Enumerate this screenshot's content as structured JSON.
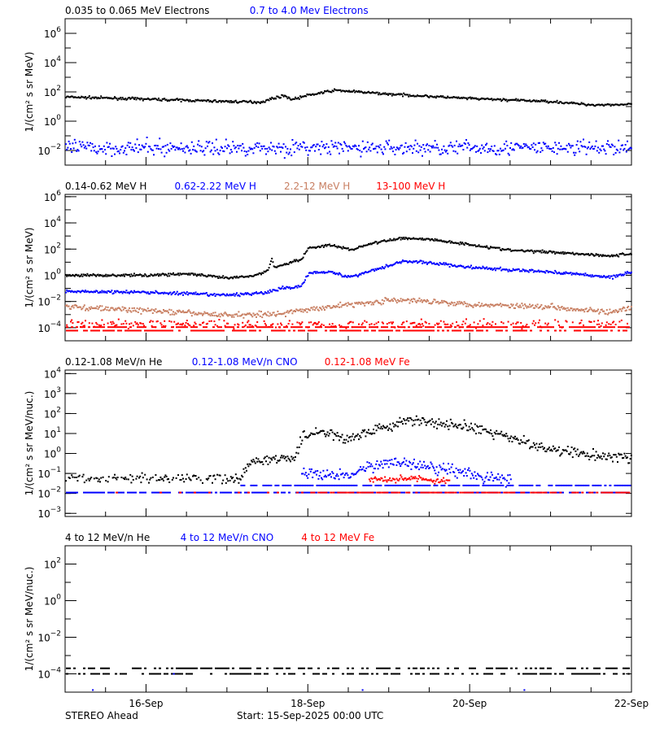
{
  "footer": {
    "left": "STEREO Ahead",
    "center": "Start: 15-Sep-2025 00:00 UTC"
  },
  "colors": {
    "black": "#000000",
    "blue": "#0000ff",
    "brown": "#c87f62",
    "red": "#ff0000"
  },
  "chart_data": [
    {
      "type": "scatter",
      "ylabel": "1/(cm² s sr MeV)",
      "yscale": "log",
      "ylim": [
        0.001,
        10000000.0
      ],
      "ytick_labels": [
        "10^6",
        "10^4",
        "10^2",
        "10^0",
        "10^-2"
      ],
      "xlim": [
        "2025-09-15T00:00",
        "2025-09-22T00:00"
      ],
      "series": [
        {
          "name": "0.035 to 0.065 MeV Electrons",
          "color": "#000000",
          "jitter": 0.04,
          "points": [
            [
              "2025-09-15T00:00",
              45
            ],
            [
              "2025-09-16T00:00",
              32
            ],
            [
              "2025-09-17T00:00",
              22
            ],
            [
              "2025-09-17T10:00",
              20
            ],
            [
              "2025-09-17T14:00",
              40
            ],
            [
              "2025-09-17T17:00",
              55
            ],
            [
              "2025-09-17T19:00",
              30
            ],
            [
              "2025-09-18T00:00",
              60
            ],
            [
              "2025-09-18T08:00",
              130
            ],
            [
              "2025-09-18T12:00",
              110
            ],
            [
              "2025-09-19T00:00",
              70
            ],
            [
              "2025-09-20T00:00",
              35
            ],
            [
              "2025-09-21T00:00",
              22
            ],
            [
              "2025-09-21T12:00",
              13
            ],
            [
              "2025-09-22T00:00",
              14
            ]
          ]
        },
        {
          "name": "0.7 to 4.0 Mev Electrons",
          "color": "#0000ff",
          "jitter": 0.25,
          "points": [
            [
              "2025-09-15T00:00",
              0.015
            ],
            [
              "2025-09-22T00:00",
              0.015
            ]
          ]
        }
      ]
    },
    {
      "type": "scatter",
      "ylabel": "1/(cm² s sr MeV)",
      "yscale": "log",
      "ylim": [
        1e-05,
        1500000.0
      ],
      "ytick_labels": [
        "10^6",
        "10^4",
        "10^2",
        "10^0",
        "10^-2",
        "10^-4"
      ],
      "xlim": [
        "2025-09-15T00:00",
        "2025-09-22T00:00"
      ],
      "series": [
        {
          "name": "0.14-0.62 MeV H",
          "color": "#000000",
          "jitter": 0.05,
          "points": [
            [
              "2025-09-15T00:00",
              1.0
            ],
            [
              "2025-09-16T00:00",
              1.0
            ],
            [
              "2025-09-16T12:00",
              1.3
            ],
            [
              "2025-09-17T00:00",
              0.6
            ],
            [
              "2025-09-17T08:00",
              0.9
            ],
            [
              "2025-09-17T12:00",
              2.5
            ],
            [
              "2025-09-17T13:00",
              18
            ],
            [
              "2025-09-17T14:00",
              4
            ],
            [
              "2025-09-17T22:00",
              18
            ],
            [
              "2025-09-18T00:00",
              120
            ],
            [
              "2025-09-18T06:00",
              200
            ],
            [
              "2025-09-18T13:00",
              90
            ],
            [
              "2025-09-18T18:00",
              250
            ],
            [
              "2025-09-19T04:00",
              700
            ],
            [
              "2025-09-19T12:00",
              550
            ],
            [
              "2025-09-20T00:00",
              220
            ],
            [
              "2025-09-20T12:00",
              80
            ],
            [
              "2025-09-21T00:00",
              60
            ],
            [
              "2025-09-21T18:00",
              30
            ],
            [
              "2025-09-22T00:00",
              45
            ]
          ]
        },
        {
          "name": "0.62-2.22 MeV H",
          "color": "#0000ff",
          "jitter": 0.06,
          "points": [
            [
              "2025-09-15T00:00",
              0.06
            ],
            [
              "2025-09-16T00:00",
              0.05
            ],
            [
              "2025-09-17T00:00",
              0.03
            ],
            [
              "2025-09-17T12:00",
              0.05
            ],
            [
              "2025-09-17T16:00",
              0.1
            ],
            [
              "2025-09-17T22:00",
              0.15
            ],
            [
              "2025-09-18T00:00",
              1.5
            ],
            [
              "2025-09-18T06:00",
              2.0
            ],
            [
              "2025-09-18T12:00",
              0.7
            ],
            [
              "2025-09-18T18:00",
              2.0
            ],
            [
              "2025-09-19T04:00",
              12
            ],
            [
              "2025-09-19T12:00",
              9
            ],
            [
              "2025-09-20T00:00",
              4
            ],
            [
              "2025-09-20T12:00",
              2.5
            ],
            [
              "2025-09-21T00:00",
              1.8
            ],
            [
              "2025-09-21T18:00",
              0.7
            ],
            [
              "2025-09-22T00:00",
              2.0
            ]
          ]
        },
        {
          "name": "2.2-12 MeV H",
          "color": "#c87f62",
          "jitter": 0.1,
          "points": [
            [
              "2025-09-15T00:00",
              0.004
            ],
            [
              "2025-09-16T00:00",
              0.002
            ],
            [
              "2025-09-17T00:00",
              0.0009
            ],
            [
              "2025-09-17T16:00",
              0.0012
            ],
            [
              "2025-09-18T06:00",
              0.004
            ],
            [
              "2025-09-19T00:00",
              0.012
            ],
            [
              "2025-09-19T12:00",
              0.011
            ],
            [
              "2025-09-20T00:00",
              0.006
            ],
            [
              "2025-09-21T00:00",
              0.004
            ],
            [
              "2025-09-21T18:00",
              0.0015
            ],
            [
              "2025-09-22T00:00",
              0.003
            ]
          ]
        },
        {
          "name": "13-100 MeV H",
          "color": "#ff0000",
          "jitter": 0.15,
          "sparse": true,
          "points": [
            [
              "2025-09-15T00:00",
              0.0002
            ],
            [
              "2025-09-22T00:00",
              0.0002
            ]
          ],
          "rows": [
            0.00011,
            6e-05
          ]
        }
      ]
    },
    {
      "type": "scatter",
      "ylabel": "1/(cm² s sr MeV/nuc.)",
      "yscale": "log",
      "ylim": [
        0.0007,
        15000.0
      ],
      "ytick_labels": [
        "10^4",
        "10^3",
        "10^2",
        "10^1",
        "10^0",
        "10^-1",
        "10^-2",
        "10^-3"
      ],
      "xlim": [
        "2025-09-15T00:00",
        "2025-09-22T00:00"
      ],
      "series": [
        {
          "name": "0.12-1.08 MeV/n He",
          "color": "#000000",
          "jitter": 0.12,
          "points": [
            [
              "2025-09-15T00:00",
              0.055
            ],
            [
              "2025-09-17T04:00",
              0.055
            ],
            [
              "2025-09-17T06:00",
              0.3
            ],
            [
              "2025-09-17T12:00",
              0.5
            ],
            [
              "2025-09-17T20:00",
              0.5
            ],
            [
              "2025-09-17T22:00",
              8
            ],
            [
              "2025-09-18T06:00",
              12
            ],
            [
              "2025-09-18T12:00",
              5
            ],
            [
              "2025-09-18T20:00",
              15
            ],
            [
              "2025-09-19T06:00",
              50
            ],
            [
              "2025-09-19T12:00",
              35
            ],
            [
              "2025-09-20T00:00",
              20
            ],
            [
              "2025-09-20T12:00",
              6
            ],
            [
              "2025-09-21T00:00",
              1.5
            ],
            [
              "2025-09-21T12:00",
              0.8
            ],
            [
              "2025-09-22T00:00",
              0.6
            ]
          ]
        },
        {
          "name": "0.12-1.08 MeV/n CNO",
          "color": "#0000ff",
          "jitter": 0.15,
          "points": [
            [
              "2025-09-17T22:00",
              0.1
            ],
            [
              "2025-09-18T12:00",
              0.08
            ],
            [
              "2025-09-19T00:00",
              0.4
            ],
            [
              "2025-09-19T12:00",
              0.25
            ],
            [
              "2025-09-20T00:00",
              0.1
            ],
            [
              "2025-09-20T12:00",
              0.04
            ]
          ],
          "rows": [
            0.025,
            0.011
          ]
        },
        {
          "name": "0.12-1.08 MeV Fe",
          "color": "#ff0000",
          "jitter": 0.1,
          "points": [
            [
              "2025-09-18T18:00",
              0.05
            ],
            [
              "2025-09-19T06:00",
              0.06
            ],
            [
              "2025-09-19T18:00",
              0.04
            ]
          ],
          "rows": [
            0.011
          ]
        }
      ]
    },
    {
      "type": "scatter",
      "ylabel": "1/(cm² s sr MeV/nuc.)",
      "yscale": "log",
      "ylim": [
        1e-05,
        1000.0
      ],
      "ytick_labels": [
        "10^2",
        "10^0",
        "10^-2",
        "10^-4"
      ],
      "xlim": [
        "2025-09-15T00:00",
        "2025-09-22T00:00"
      ],
      "series": [
        {
          "name": "4 to 12 MeV/n He",
          "color": "#000000",
          "jitter": 0,
          "sparse": true,
          "rows": [
            0.0001,
            0.0002
          ]
        },
        {
          "name": "4 to 12 MeV/n CNO",
          "color": "#0000ff",
          "jitter": 0,
          "specks": [
            [
              "2025-09-15T08:00",
              1.3e-05
            ],
            [
              "2025-09-18T16:00",
              1.3e-05
            ],
            [
              "2025-09-20T16:00",
              1.3e-05
            ],
            [
              "2025-09-16T08:00",
              0.0001
            ]
          ]
        },
        {
          "name": "4 to 12 MeV Fe",
          "color": "#ff0000",
          "jitter": 0
        }
      ]
    }
  ],
  "xaxis": {
    "tick_labels": [
      [
        "2025-09-16T00:00",
        "16-Sep"
      ],
      [
        "2025-09-18T00:00",
        "18-Sep"
      ],
      [
        "2025-09-20T00:00",
        "20-Sep"
      ],
      [
        "2025-09-22T00:00",
        "22-Sep"
      ]
    ]
  }
}
